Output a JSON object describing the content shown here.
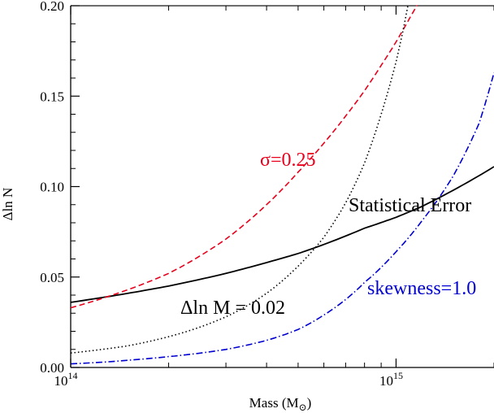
{
  "chart_data": {
    "type": "line",
    "title": "",
    "xlabel": "Mass (M",
    "xlabel_sub": "⊙",
    "xlabel_close": ")",
    "ylabel": "Δln N",
    "x_scale": "log",
    "xlim": [
      100000000000000.0,
      2000000000000000.0
    ],
    "ylim": [
      0.0,
      0.2
    ],
    "x_ticks": [
      {
        "value": 100000000000000.0,
        "base": "10",
        "exp": "14"
      },
      {
        "value": 1000000000000000.0,
        "base": "10",
        "exp": "15"
      }
    ],
    "y_ticks": [
      {
        "value": 0.0,
        "label": "0.00"
      },
      {
        "value": 0.05,
        "label": "0.05"
      },
      {
        "value": 0.1,
        "label": "0.10"
      },
      {
        "value": 0.15,
        "label": "0.15"
      },
      {
        "value": 0.2,
        "label": "0.20"
      }
    ],
    "grid": false,
    "series": [
      {
        "name": "Statistical Error",
        "color": "#000000",
        "style": "solid",
        "x": [
          100000000000000.0,
          150000000000000.0,
          200000000000000.0,
          300000000000000.0,
          400000000000000.0,
          500000000000000.0,
          600000000000000.0,
          800000000000000.0,
          1000000000000000.0,
          1200000000000000.0,
          1500000000000000.0,
          2000000000000000.0
        ],
        "y": [
          0.036,
          0.041,
          0.045,
          0.052,
          0.058,
          0.063,
          0.068,
          0.077,
          0.083,
          0.089,
          0.098,
          0.111
        ]
      },
      {
        "name": "σ=0.25",
        "color": "#e8001c",
        "style": "dashed",
        "x": [
          100000000000000.0,
          150000000000000.0,
          200000000000000.0,
          300000000000000.0,
          400000000000000.0,
          500000000000000.0,
          600000000000000.0,
          700000000000000.0,
          800000000000000.0,
          900000000000000.0,
          1000000000000000.0,
          1100000000000000.0,
          1200000000000000.0
        ],
        "y": [
          0.033,
          0.043,
          0.052,
          0.071,
          0.09,
          0.108,
          0.124,
          0.139,
          0.153,
          0.167,
          0.18,
          0.193,
          0.205
        ]
      },
      {
        "name": "Δln M = 0.02",
        "color": "#000000",
        "style": "dotted",
        "x": [
          100000000000000.0,
          150000000000000.0,
          200000000000000.0,
          300000000000000.0,
          400000000000000.0,
          500000000000000.0,
          600000000000000.0,
          700000000000000.0,
          800000000000000.0,
          900000000000000.0,
          1000000000000000.0,
          1050000000000000.0,
          1100000000000000.0
        ],
        "y": [
          0.008,
          0.012,
          0.017,
          0.028,
          0.041,
          0.056,
          0.072,
          0.091,
          0.113,
          0.14,
          0.169,
          0.186,
          0.205
        ]
      },
      {
        "name": "skewness=1.0",
        "color": "#0000d0",
        "style": "dashdot",
        "x": [
          100000000000000.0,
          150000000000000.0,
          200000000000000.0,
          300000000000000.0,
          400000000000000.0,
          500000000000000.0,
          600000000000000.0,
          800000000000000.0,
          1000000000000000.0,
          1200000000000000.0,
          1500000000000000.0,
          1800000000000000.0,
          2000000000000000.0
        ],
        "y": [
          0.002,
          0.004,
          0.006,
          0.01,
          0.015,
          0.021,
          0.029,
          0.047,
          0.064,
          0.081,
          0.106,
          0.135,
          0.163
        ]
      }
    ],
    "annotations": [
      {
        "text": "σ=0.25",
        "color": "#e8001c",
        "series": 1
      },
      {
        "text": "Statistical Error",
        "color": "#000000",
        "series": 0
      },
      {
        "text": "Δln M = 0.02",
        "color": "#000000",
        "series": 2
      },
      {
        "text": "skewness=1.0",
        "color": "#0000d0",
        "series": 3
      }
    ]
  }
}
